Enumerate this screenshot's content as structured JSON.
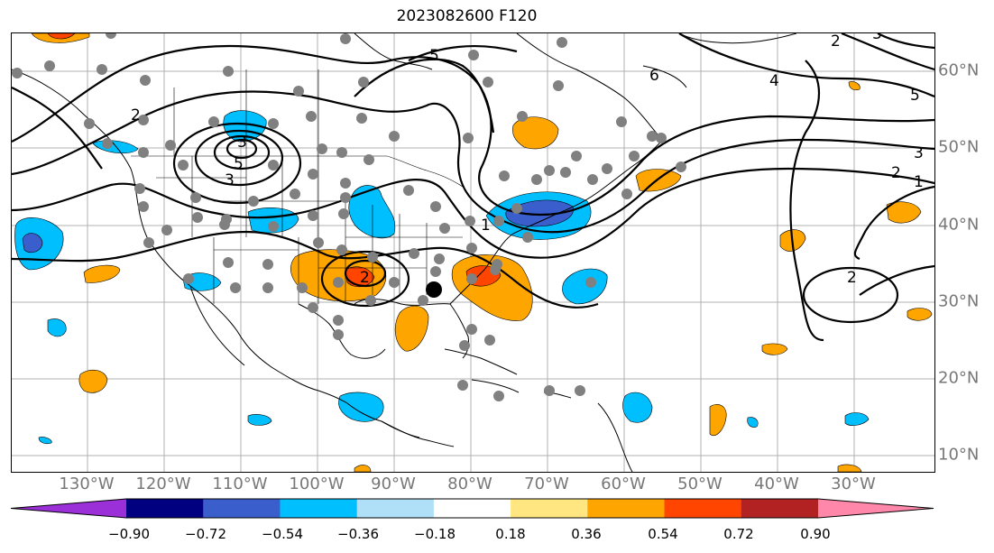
{
  "title": "2023082600 F120",
  "lon_labels": [
    "130°W",
    "120°W",
    "110°W",
    "100°W",
    "90°W",
    "80°W",
    "70°W",
    "60°W",
    "50°W",
    "40°W",
    "30°W"
  ],
  "lat_labels": [
    "60°N",
    "50°N",
    "40°N",
    "30°N",
    "20°N",
    "10°N"
  ],
  "contour_labels": [
    "5",
    "6",
    "4",
    "5",
    "3",
    "2",
    "1",
    "2",
    "3",
    "3",
    "5",
    "2",
    "3",
    "2",
    "2",
    "1"
  ],
  "colorbar": {
    "ticks": [
      "−0.90",
      "−0.72",
      "−0.54",
      "−0.36",
      "−0.18",
      "0.18",
      "0.36",
      "0.54",
      "0.72",
      "0.90"
    ],
    "colors": [
      "#9b30d9",
      "#000080",
      "#3a5fcd",
      "#00bfff",
      "#b0e0f8",
      "#ffffff",
      "#ffe680",
      "#ffa500",
      "#ff4500",
      "#b22222",
      "#ff88aa"
    ]
  },
  "colors": {
    "negative_strong": "#3a5fcd",
    "negative": "#00bfff",
    "positive": "#ffa500",
    "positive_strong": "#ff4500",
    "station": "#808080",
    "grid": "#b0b0b0"
  }
}
